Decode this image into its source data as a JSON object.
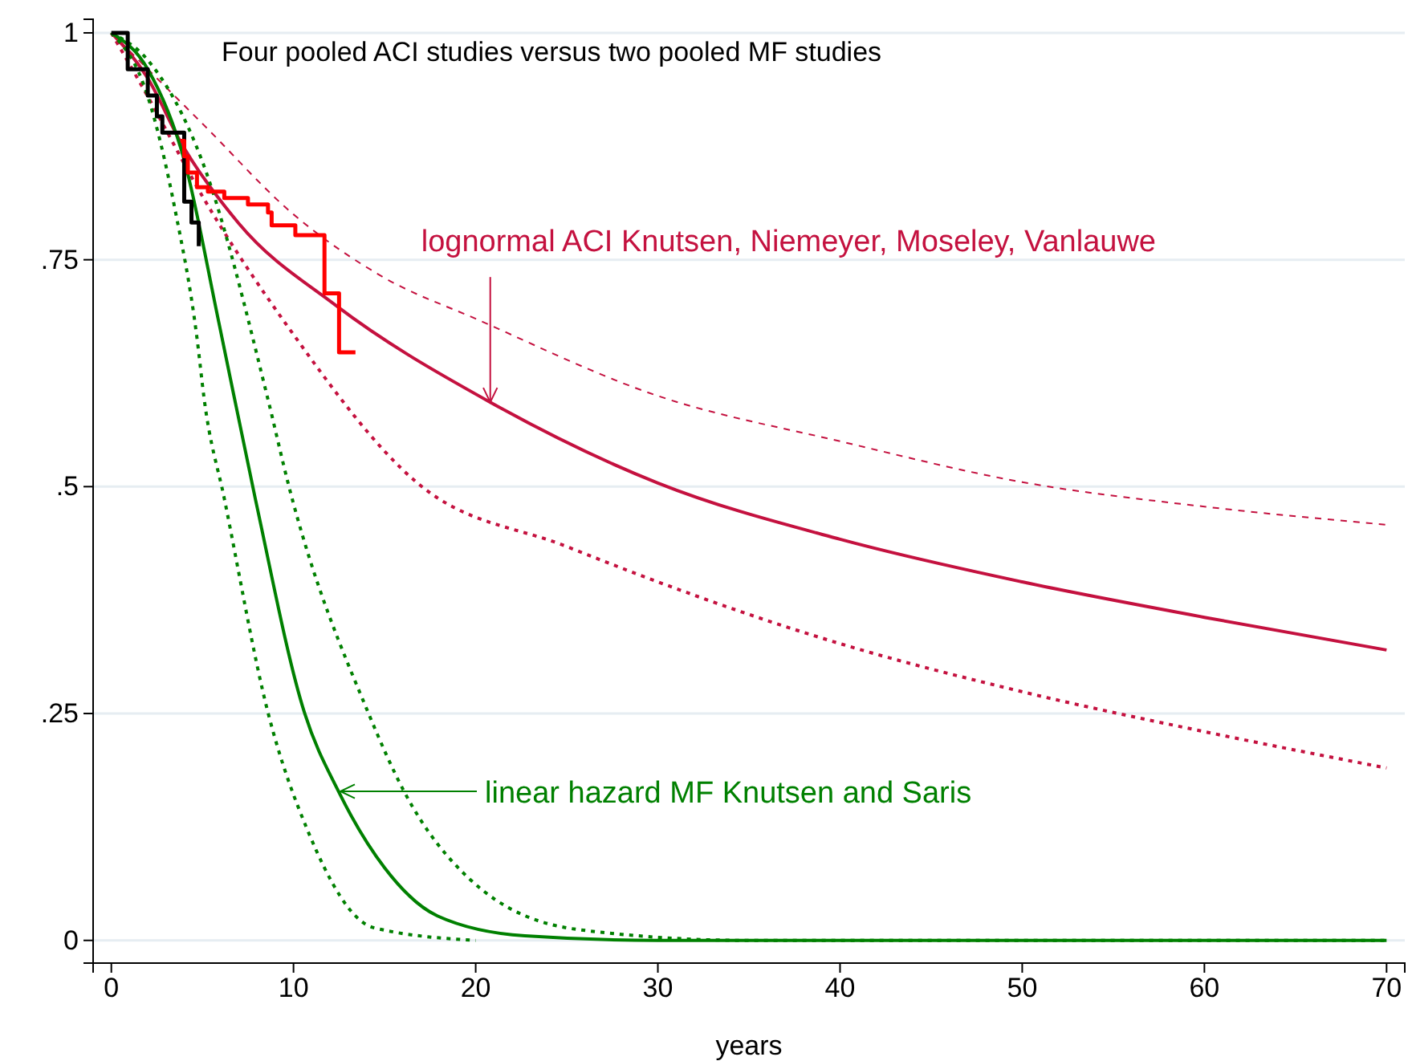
{
  "chart_data": {
    "type": "line",
    "title": "Four pooled ACI studies versus two pooled MF studies",
    "xlabel": "years",
    "xlim": [
      -1,
      71
    ],
    "ylim": [
      -0.025,
      1.015
    ],
    "xticks": [
      0,
      10,
      20,
      30,
      40,
      50,
      60,
      70
    ],
    "yticks": [
      0,
      {
        "value": 0.25,
        "label": ".25"
      },
      {
        "value": 0.5,
        "label": ".5"
      },
      {
        "value": 0.75,
        "label": ".75"
      },
      1
    ],
    "grid": "y",
    "marker": "none",
    "annotations": [
      {
        "text": "lognormal ACI Knutsen, Niemeyer, Moseley, Vanlauwe",
        "x": 20.8,
        "y": 0.593
      },
      "linear hazard MF Knutsen and Saris"
    ],
    "series": [
      {
        "type": "line",
        "line_style": "dashed",
        "color": "#c4113f",
        "x": [
          0,
          2,
          5,
          10,
          15,
          20,
          30,
          40,
          50,
          60,
          70
        ],
        "values": [
          1,
          0.96,
          0.9,
          0.8,
          0.73,
          0.685,
          0.6,
          0.55,
          0.505,
          0.478,
          0.458
        ]
      },
      {
        "type": "line",
        "line_style": "dotted",
        "color": "#c4113f",
        "x": [
          0,
          2,
          5,
          9.7,
          16.8,
          25,
          40,
          50,
          60,
          70
        ],
        "values": [
          1,
          0.93,
          0.82,
          0.676,
          0.504,
          0.434,
          0.327,
          0.274,
          0.23,
          0.19
        ]
      },
      {
        "type": "line",
        "line_style": "solid",
        "color": "#c4113f",
        "x": [
          0,
          2,
          3.8,
          7,
          12.3,
          20.8,
          30,
          40,
          50,
          60,
          70
        ],
        "values": [
          1,
          0.95,
          0.88,
          0.79,
          0.7,
          0.593,
          0.504,
          0.442,
          0.395,
          0.356,
          0.32
        ]
      },
      {
        "type": "line",
        "line_style": "dotted",
        "color": "#008000",
        "x": [
          0,
          2,
          3.5,
          4.7,
          5.1,
          6.2,
          8.6,
          10.8,
          14.4,
          20
        ],
        "values": [
          1,
          0.93,
          0.805,
          0.664,
          0.596,
          0.487,
          0.251,
          0.12,
          0.014,
          0
        ]
      },
      {
        "type": "line",
        "line_style": "dotted",
        "color": "#008000",
        "x": [
          0,
          2,
          5,
          8.6,
          9.7,
          14.1,
          16.1,
          19.7,
          25.6,
          35,
          70
        ],
        "values": [
          1,
          0.97,
          0.858,
          0.596,
          0.504,
          0.251,
          0.163,
          0.067,
          0.012,
          0,
          0
        ]
      },
      {
        "type": "line",
        "line_style": "solid",
        "color": "#008000",
        "x": [
          0,
          2,
          4,
          5.9,
          7.9,
          10.6,
          12.5,
          15,
          17.9,
          22.7,
          30,
          70
        ],
        "values": [
          1,
          0.96,
          0.86,
          0.681,
          0.487,
          0.251,
          0.163,
          0.08,
          0.027,
          0.005,
          0,
          0
        ]
      },
      {
        "type": "step",
        "line_style": "solid",
        "color": "#000000",
        "x": [
          0,
          0.9,
          2,
          2.5,
          2.8,
          3.8,
          4,
          4.4,
          4.8
        ],
        "values": [
          1,
          0.96,
          0.931,
          0.908,
          0.89,
          0.89,
          0.814,
          0.791,
          0.765
        ]
      },
      {
        "type": "step",
        "line_style": "solid",
        "color": "#ff0000",
        "x": [
          3.8,
          4,
          4.2,
          4.7,
          5.3,
          6.2,
          7.5,
          8.6,
          8.8,
          10.1,
          11.7,
          12.5,
          13.4
        ],
        "values": [
          0.881,
          0.864,
          0.846,
          0.83,
          0.825,
          0.818,
          0.811,
          0.802,
          0.788,
          0.777,
          0.713,
          0.648,
          0.648
        ]
      }
    ]
  }
}
